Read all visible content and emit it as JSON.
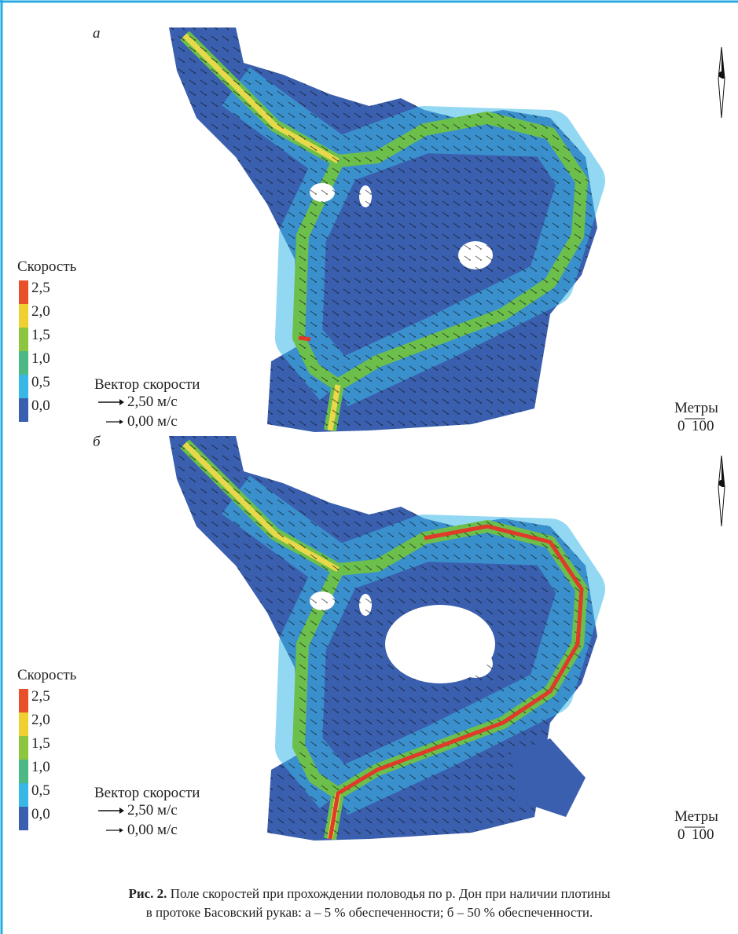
{
  "panels": [
    {
      "label": "а",
      "legend": {
        "title": "Скорость",
        "levels": [
          "2,5",
          "2,0",
          "1,5",
          "1,0",
          "0,5",
          "0,0"
        ]
      },
      "vector": {
        "title": "Вектор скорости",
        "max": "2,50 м/с",
        "min": "0,00 м/с"
      },
      "scale": {
        "title": "Метры",
        "ticks": [
          "0",
          "100"
        ]
      }
    },
    {
      "label": "б",
      "legend": {
        "title": "Скорость",
        "levels": [
          "2,5",
          "2,0",
          "1,5",
          "1,0",
          "0,5",
          "0,0"
        ]
      },
      "vector": {
        "title": "Вектор скорости",
        "max": "2,50 м/с",
        "min": "0,00 м/с"
      },
      "scale": {
        "title": "Метры",
        "ticks": [
          "0",
          "100"
        ]
      }
    }
  ],
  "caption": {
    "label": "Рис. 2.",
    "line1": "Поле скоростей при прохождении половодья по р. Дон при наличии плотины",
    "line2": "в протоке Басовский рукав: а – 5 % обеспеченности; б – 50 % обеспеченности."
  }
}
